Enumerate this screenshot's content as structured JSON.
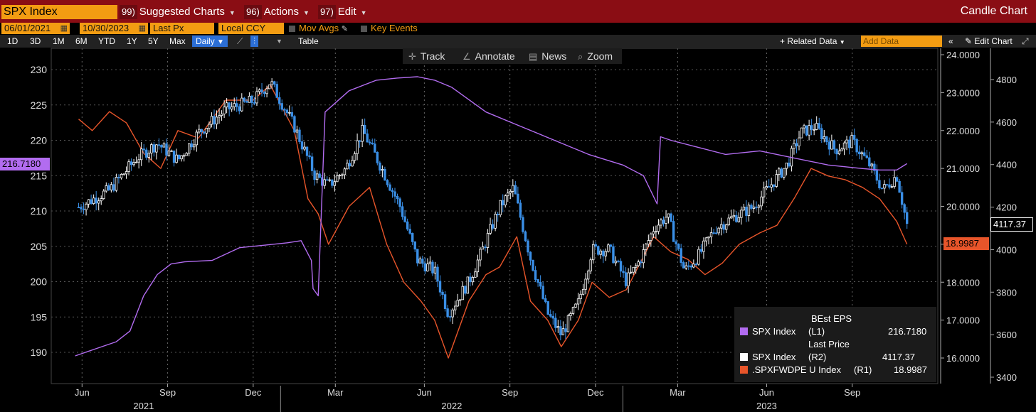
{
  "header": {
    "ticker": "SPX Index",
    "menus": [
      {
        "num": "99)",
        "label": "Suggested Charts"
      },
      {
        "num": "96)",
        "label": "Actions"
      },
      {
        "num": "97)",
        "label": "Edit"
      }
    ],
    "title": "Candle Chart"
  },
  "options": {
    "start_date": "06/01/2021",
    "end_date": "10/30/2023",
    "field": "Last Px",
    "currency": "Local CCY",
    "mov_avgs": "Mov Avgs",
    "key_events": "Key Events"
  },
  "toolbar": {
    "periods": [
      "1D",
      "3D",
      "1M",
      "6M",
      "YTD",
      "1Y",
      "5Y",
      "Max"
    ],
    "frequency": "Daily",
    "table": "Table",
    "related_data": "Related Data",
    "add_data_placeholder": "Add Data",
    "edit_chart": "Edit Chart"
  },
  "chart_tools": [
    "Track",
    "Annotate",
    "News",
    "Zoom"
  ],
  "colors": {
    "eps": "#b26cf0",
    "pe": "#e8552a",
    "candle_up": "#ffffff",
    "candle_down": "#3a8fe6",
    "background": "#000000",
    "header_bar": "#8a0d14",
    "field_orange": "#f39c12"
  },
  "chart_data": {
    "type": "line",
    "x_ticks": [
      "Jun",
      "Sep",
      "Dec",
      "Mar",
      "Jun",
      "Sep",
      "Dec",
      "Mar",
      "Jun",
      "Sep"
    ],
    "x_years": [
      "2021",
      "2022",
      "2023"
    ],
    "left_axis": {
      "ylim": [
        188,
        232
      ],
      "ticks": [
        190,
        195,
        200,
        205,
        210,
        215,
        220,
        225,
        230
      ]
    },
    "right_axis_pe": {
      "ylim": [
        15.3,
        24.2
      ],
      "ticks": [
        "16.0000",
        "17.0000",
        "18.0000",
        "19.0000",
        "20.0000",
        "21.0000",
        "22.0000",
        "23.0000",
        "24.0000"
      ]
    },
    "right_axis_price": {
      "ylim": [
        3330,
        4900
      ],
      "ticks": [
        3400,
        3600,
        3800,
        4000,
        4200,
        4400,
        4600,
        4800
      ]
    },
    "series": [
      {
        "name": "SPX Index",
        "field": "BEst EPS",
        "axis": "L1",
        "last": "216.7180",
        "x": [
          2021.4,
          2021.46,
          2021.52,
          2021.56,
          2021.6,
          2021.64,
          2021.68,
          2021.72,
          2021.8,
          2021.88,
          2021.96,
          2022.02,
          2022.06,
          2022.09,
          2022.095,
          2022.11,
          2022.13,
          2022.2,
          2022.28,
          2022.34,
          2022.4,
          2022.45,
          2022.5,
          2022.6,
          2022.7,
          2022.8,
          2022.9,
          2023.0,
          2023.06,
          2023.1,
          2023.11,
          2023.14,
          2023.22,
          2023.3,
          2023.4,
          2023.5,
          2023.6,
          2023.7,
          2023.75,
          2023.8,
          2023.83
        ],
        "values": [
          189.5,
          190.5,
          191.5,
          193.0,
          198.0,
          201.0,
          202.5,
          202.8,
          203.0,
          204.8,
          205.2,
          205.5,
          205.8,
          203.0,
          199.0,
          198.0,
          224.0,
          227.0,
          228.5,
          228.8,
          229.0,
          228.5,
          227.5,
          224.0,
          222.0,
          220.0,
          218.0,
          216.5,
          215.0,
          211.0,
          220.5,
          220.0,
          219.0,
          218.0,
          218.5,
          217.5,
          216.5,
          216.0,
          215.8,
          215.8,
          216.7
        ]
      },
      {
        "name": "SPX Index",
        "field": "Last Price",
        "axis": "R2",
        "last": "4117.37",
        "x": [
          2021.41,
          2021.5,
          2021.58,
          2021.64,
          2021.7,
          2021.76,
          2021.84,
          2021.92,
          2021.97,
          2022.04,
          2022.1,
          2022.14,
          2022.19,
          2022.24,
          2022.29,
          2022.35,
          2022.4,
          2022.45,
          2022.49,
          2022.55,
          2022.59,
          2022.64,
          2022.68,
          2022.73,
          2022.78,
          2022.82,
          2022.87,
          2022.91,
          2022.96,
          2023.01,
          2023.05,
          2023.09,
          2023.13,
          2023.18,
          2023.22,
          2023.27,
          2023.32,
          2023.38,
          2023.43,
          2023.48,
          2023.52,
          2023.56,
          2023.62,
          2023.67,
          2023.72,
          2023.76,
          2023.8,
          2023.83
        ],
        "values": [
          4200,
          4280,
          4430,
          4500,
          4420,
          4550,
          4660,
          4700,
          4790,
          4580,
          4350,
          4300,
          4380,
          4560,
          4400,
          4200,
          3950,
          3900,
          3700,
          3850,
          4000,
          4200,
          4290,
          3960,
          3700,
          3600,
          3750,
          4000,
          4000,
          3850,
          3950,
          4100,
          4160,
          3900,
          3970,
          4100,
          4150,
          4200,
          4300,
          4400,
          4550,
          4580,
          4470,
          4510,
          4400,
          4280,
          4350,
          4117.37
        ]
      },
      {
        "name": ".SPXFWDPE U Index",
        "field": "",
        "axis": "R1",
        "last": "18.9987",
        "x": [
          2021.41,
          2021.45,
          2021.5,
          2021.55,
          2021.6,
          2021.65,
          2021.7,
          2021.76,
          2021.84,
          2021.92,
          2021.97,
          2022.04,
          2022.08,
          2022.11,
          2022.14,
          2022.2,
          2022.26,
          2022.31,
          2022.36,
          2022.41,
          2022.45,
          2022.49,
          2022.55,
          2022.6,
          2022.64,
          2022.69,
          2022.73,
          2022.78,
          2022.82,
          2022.87,
          2022.91,
          2022.96,
          2023.01,
          2023.05,
          2023.09,
          2023.14,
          2023.19,
          2023.24,
          2023.29,
          2023.34,
          2023.4,
          2023.45,
          2023.5,
          2023.55,
          2023.6,
          2023.65,
          2023.7,
          2023.75,
          2023.8,
          2023.83
        ],
        "values": [
          22.3,
          22.0,
          22.5,
          22.2,
          21.4,
          21.0,
          22.0,
          21.8,
          22.8,
          22.8,
          23.2,
          22.0,
          20.2,
          19.8,
          19.0,
          20.0,
          20.5,
          19.0,
          18.0,
          17.5,
          17.0,
          16.0,
          17.5,
          18.2,
          18.4,
          19.2,
          17.5,
          17.0,
          16.3,
          17.0,
          18.0,
          17.6,
          17.8,
          18.5,
          19.2,
          18.8,
          18.6,
          18.2,
          18.5,
          19.0,
          19.3,
          19.5,
          20.2,
          21.0,
          20.8,
          20.7,
          20.5,
          20.2,
          19.6,
          19.0
        ]
      }
    ],
    "legend": [
      {
        "header": "BEst EPS",
        "label": "SPX Index",
        "axis": "(L1)",
        "value": "216.7180"
      },
      {
        "header": "Last Price",
        "label": "SPX Index",
        "axis": "(R2)",
        "value": "4117.37"
      },
      {
        "header": "",
        "label": ".SPXFWDPE U Index",
        "axis": "(R1)",
        "value": "18.9987"
      }
    ]
  }
}
